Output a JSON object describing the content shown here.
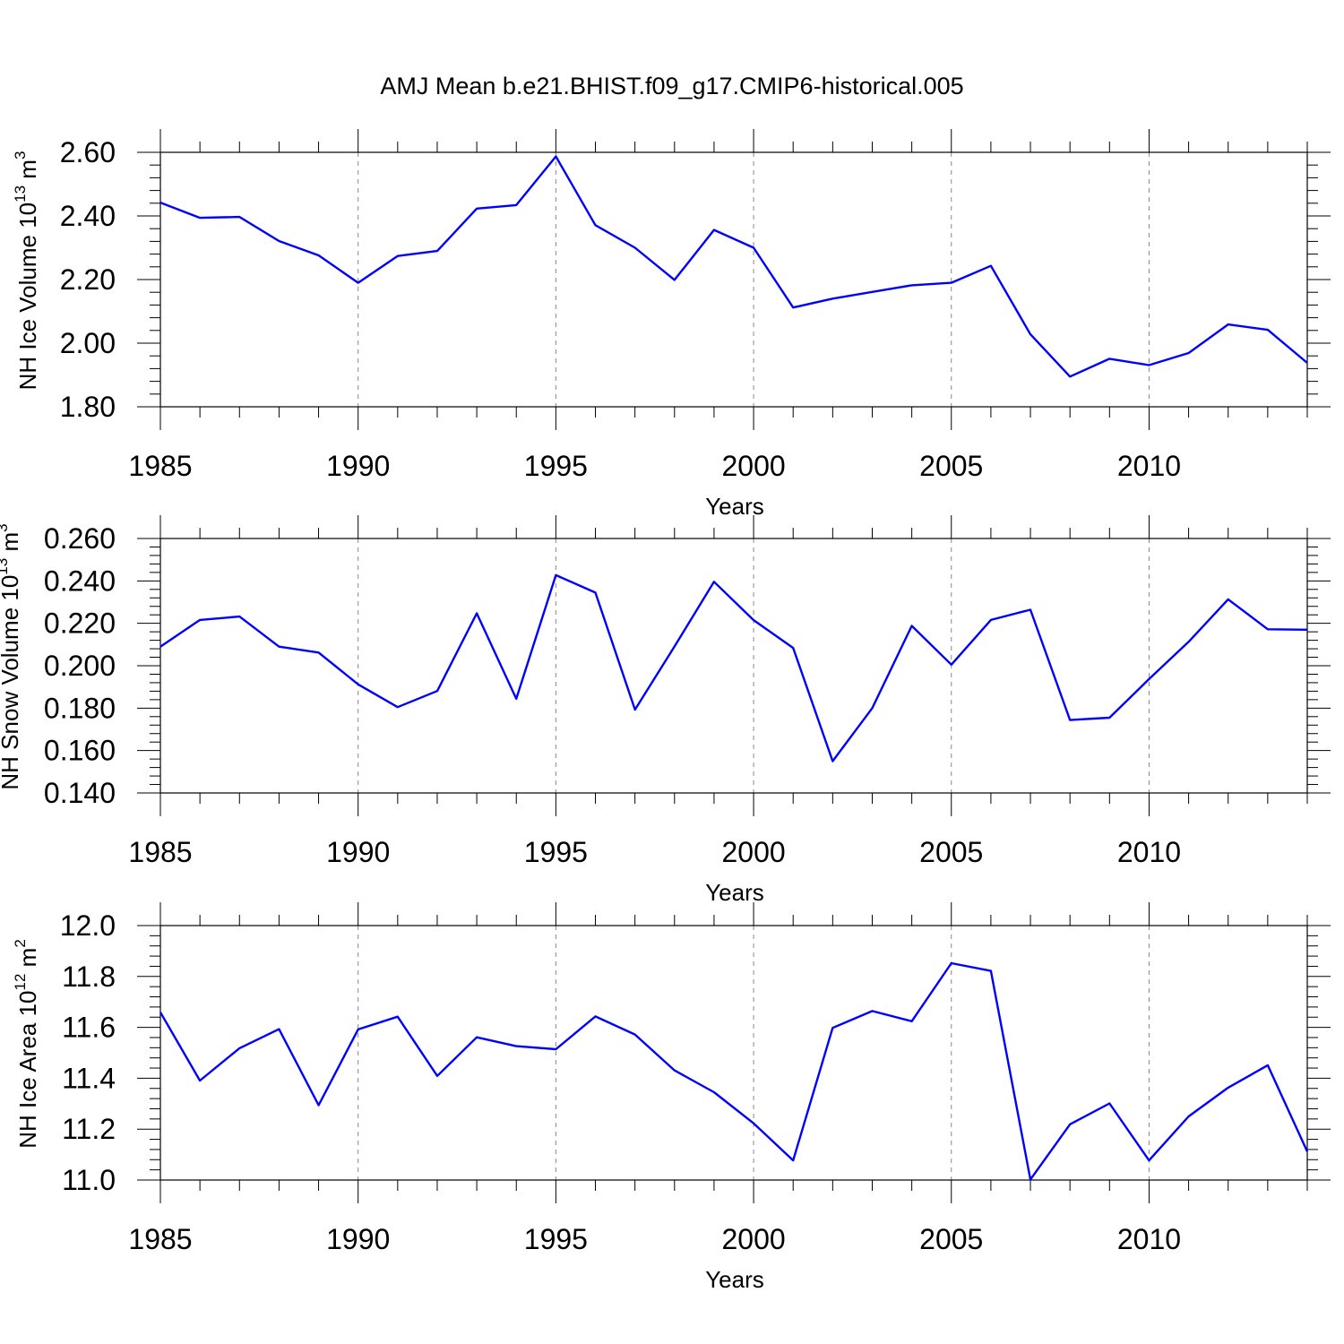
{
  "title": "AMJ Mean b.e21.BHIST.f09_g17.CMIP6-historical.005",
  "colors": {
    "line": "#0000ff",
    "grid": "#888888",
    "axis": "#000000"
  },
  "chart_data": [
    {
      "type": "line",
      "ylabel": {
        "text": "NH Ice Volume 10",
        "sup": "13",
        "unit": " m",
        "unit_sup": "3"
      },
      "xlabel": "Years",
      "xlim": [
        1985,
        2014
      ],
      "ylim": [
        1.8,
        2.6
      ],
      "x_ticks": [
        1985,
        1990,
        1995,
        2000,
        2005,
        2010
      ],
      "x_tick_labels": [
        "1985",
        "1990",
        "1995",
        "2000",
        "2005",
        "2010"
      ],
      "y_ticks": [
        1.8,
        2.0,
        2.2,
        2.4,
        2.6
      ],
      "y_tick_labels": [
        "1.80",
        "2.00",
        "2.20",
        "2.40",
        "2.60"
      ],
      "grid": "x-dashed",
      "x": [
        1985,
        1986,
        1987,
        1988,
        1989,
        1990,
        1991,
        1992,
        1993,
        1994,
        1995,
        1996,
        1997,
        1998,
        1999,
        2000,
        2001,
        2002,
        2003,
        2004,
        2005,
        2006,
        2007,
        2008,
        2009,
        2010,
        2011,
        2012,
        2013,
        2014
      ],
      "values": [
        2.442,
        2.394,
        2.397,
        2.321,
        2.276,
        2.19,
        2.274,
        2.29,
        2.423,
        2.434,
        2.587,
        2.371,
        2.3,
        2.199,
        2.356,
        2.3,
        2.112,
        2.14,
        2.161,
        2.182,
        2.19,
        2.243,
        2.028,
        1.895,
        1.951,
        1.931,
        1.969,
        2.059,
        2.042,
        1.938
      ]
    },
    {
      "type": "line",
      "ylabel": {
        "text": "NH Snow Volume 10",
        "sup": "13",
        "unit": " m",
        "unit_sup": "3"
      },
      "xlabel": "Years",
      "xlim": [
        1985,
        2014
      ],
      "ylim": [
        0.14,
        0.26
      ],
      "x_ticks": [
        1985,
        1990,
        1995,
        2000,
        2005,
        2010
      ],
      "x_tick_labels": [
        "1985",
        "1990",
        "1995",
        "2000",
        "2005",
        "2010"
      ],
      "y_ticks": [
        0.14,
        0.16,
        0.18,
        0.2,
        0.22,
        0.24,
        0.26
      ],
      "y_tick_labels": [
        "0.140",
        "0.160",
        "0.180",
        "0.200",
        "0.220",
        "0.240",
        "0.260"
      ],
      "grid": "x-dashed",
      "x": [
        1985,
        1986,
        1987,
        1988,
        1989,
        1990,
        1991,
        1992,
        1993,
        1994,
        1995,
        1996,
        1997,
        1998,
        1999,
        2000,
        2001,
        2002,
        2003,
        2004,
        2005,
        2006,
        2007,
        2008,
        2009,
        2010,
        2011,
        2012,
        2013,
        2014
      ],
      "values": [
        0.209,
        0.2216,
        0.2232,
        0.209,
        0.2062,
        0.1912,
        0.1805,
        0.1881,
        0.2247,
        0.1844,
        0.2427,
        0.2345,
        0.1793,
        0.2091,
        0.2396,
        0.2215,
        0.2084,
        0.155,
        0.18,
        0.2188,
        0.2005,
        0.2216,
        0.2264,
        0.1744,
        0.1755,
        0.1937,
        0.2113,
        0.2313,
        0.2172,
        0.217
      ]
    },
    {
      "type": "line",
      "ylabel": {
        "text": "NH Ice Area 10",
        "sup": "12",
        "unit": " m",
        "unit_sup": "2"
      },
      "xlabel": "Years",
      "xlim": [
        1985,
        2014
      ],
      "ylim": [
        11.0,
        12.0
      ],
      "x_ticks": [
        1985,
        1990,
        1995,
        2000,
        2005,
        2010
      ],
      "x_tick_labels": [
        "1985",
        "1990",
        "1995",
        "2000",
        "2005",
        "2010"
      ],
      "y_ticks": [
        11.0,
        11.2,
        11.4,
        11.6,
        11.8,
        12.0
      ],
      "y_tick_labels": [
        "11.0",
        "11.2",
        "11.4",
        "11.6",
        "11.8",
        "12.0"
      ],
      "grid": "x-dashed",
      "x": [
        1985,
        1986,
        1987,
        1988,
        1989,
        1990,
        1991,
        1992,
        1993,
        1994,
        1995,
        1996,
        1997,
        1998,
        1999,
        2000,
        2001,
        2002,
        2003,
        2004,
        2005,
        2006,
        2007,
        2008,
        2009,
        2010,
        2011,
        2012,
        2013,
        2014
      ],
      "values": [
        11.659,
        11.391,
        11.518,
        11.593,
        11.294,
        11.592,
        11.642,
        11.409,
        11.561,
        11.526,
        11.514,
        11.643,
        11.572,
        11.431,
        11.345,
        11.223,
        11.077,
        11.598,
        11.664,
        11.624,
        11.852,
        11.822,
        11.002,
        11.219,
        11.301,
        11.077,
        11.25,
        11.363,
        11.451,
        11.112
      ]
    }
  ]
}
